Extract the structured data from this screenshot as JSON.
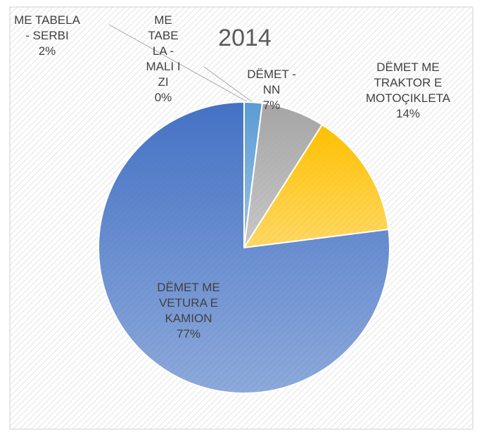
{
  "chart_data": {
    "type": "pie",
    "title": "2014",
    "categories": [
      "ME TABELA - SERBI",
      "ME TABELA - MALI I ZI",
      "DËMET - NN",
      "DËMET ME TRAKTOR E MOTOÇIKLETA",
      "DËMET ME VETURA E KAMION"
    ],
    "values": [
      2,
      0,
      7,
      14,
      77
    ],
    "value_labels": [
      "2%",
      "0%",
      "7%",
      "14%",
      "77%"
    ],
    "colors": [
      "#5b9bd5",
      "#264478",
      "#a5a5a5",
      "#ffc000",
      "#4472c4"
    ]
  }
}
